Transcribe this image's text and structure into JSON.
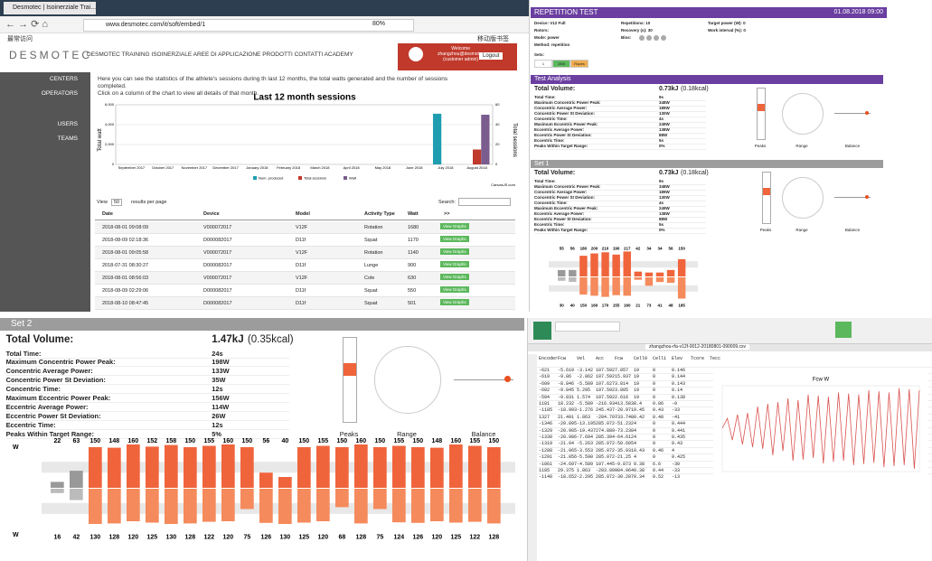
{
  "browser": {
    "tab": "Desmotec | Isoinerziale Trai...",
    "url": "www.desmotec.com/it/soft/embed/1",
    "zoom": "80%",
    "bookmarks": "最常访问",
    "mobile_bookmarks": "移动版书签",
    "logo": "DESMOTEC",
    "nav": "DESMOTEC TRAINING ISOINERZIALE  AREE DI APPLICAZIONE  PRODOTTI  CONTATTI  ACADEMY",
    "welcome": [
      "Welcome",
      "zhangzhou@desmotec",
      "(customer admin)"
    ],
    "logout": "Logout",
    "sidebar": [
      "CENTERS",
      "OPERATORS",
      "USERS",
      "TEAMS"
    ],
    "intro": [
      "Here you can see the statistics of the athlete's sessions during th last 12 months, the total watts generated and the number of sessions completed.",
      "Click on a column of the chart to view all details of that month."
    ],
    "table": {
      "show": "View",
      "per_page": "50",
      "results": "results per page",
      "search": "Search:",
      "headers": [
        "Date",
        "Device",
        "Model",
        "Activity Type",
        "Watt",
        ">>"
      ],
      "button": "View Graphs",
      "rows": [
        [
          "2018-08-01 09:08:09",
          "V000072017",
          "V12F",
          "Rotation",
          "1680"
        ],
        [
          "2018-08-09 02:18:36",
          "D000082017",
          "D11f",
          "Squat",
          "1170"
        ],
        [
          "2018-08-01 09:05:58",
          "V000072017",
          "V12F",
          "Rotation",
          "1140"
        ],
        [
          "2018-07-31 08:30:27",
          "D000082017",
          "D11f",
          "Lunge",
          "900"
        ],
        [
          "2018-08-01 08:56:03",
          "V000072017",
          "V12F",
          "Cole",
          "630"
        ],
        [
          "2018-08-09 02:29:06",
          "D000082017",
          "D11f",
          "Squat",
          "550"
        ],
        [
          "2018-08-10 08:47:45",
          "D000082017",
          "D11f",
          "Squat",
          "501"
        ]
      ]
    }
  },
  "chart_data": {
    "type": "bar",
    "title": "Last 12 month sessions",
    "y_label": "Total watt",
    "y2_label": "Total sessions",
    "credit": "CanvasJS.com",
    "categories": [
      "September 2017",
      "October 2017",
      "November 2017",
      "December 2017",
      "January 2018",
      "February 2018",
      "March 2018",
      "April 2018",
      "May 2018",
      "June 2018",
      "July 2018",
      "August 2018"
    ],
    "series": [
      {
        "name": "Num. produced",
        "color": "#1f9db0",
        "values": [
          0,
          0,
          0,
          0,
          0,
          0,
          0,
          0,
          0,
          0,
          5100,
          0
        ]
      },
      {
        "name": "Total sessions",
        "color": "#c0392b",
        "axis": "y2",
        "values": [
          0,
          0,
          0,
          0,
          0,
          0,
          0,
          0,
          0,
          0,
          0,
          15
        ]
      },
      {
        "name": "Watt",
        "color": "#7b5c8e",
        "values": [
          0,
          0,
          0,
          0,
          0,
          0,
          0,
          0,
          0,
          0,
          0,
          5000
        ]
      }
    ],
    "ylim": [
      0,
      6000
    ],
    "yticks": [
      0,
      {
        "value": 2000,
        "label": "2,000"
      },
      {
        "value": 4000,
        "label": "4,000"
      },
      {
        "value": 6000,
        "label": "6,000"
      }
    ],
    "y2lim": [
      0,
      60
    ],
    "y2ticks": [
      0,
      20,
      40,
      60
    ],
    "grid": true
  },
  "report": {
    "title": "REPETITION TEST",
    "date": "01.08.2018 09:00",
    "fields": [
      "Device: V12 Full",
      "Repetitions: 10",
      "Target power (W): 0",
      "Rotors:",
      "Recovery (s): 30",
      "Work interval (%): 0",
      "Mode: power",
      "Bins:",
      "",
      "Method: repetition"
    ],
    "sets_label": "Sets:",
    "sets": [
      "1",
      "15W",
      "Ropes"
    ],
    "analysis_title": "Test Analysis",
    "volume_label": "Total Volume:",
    "volume": "0.73kJ",
    "volume_kcal": "(0.18kcal)",
    "metrics": [
      [
        "Total Time:",
        "9s"
      ],
      [
        "Maximum Concentric Power Peak:",
        "348W"
      ],
      [
        "Concentric Average Power:",
        "189W"
      ],
      [
        "Concentric Power St Deviation:",
        "130W"
      ],
      [
        "Concentric Time:",
        "4s"
      ],
      [
        "Maximum Eccentric Power Peak:",
        "249W"
      ],
      [
        "Eccentric Average Power:",
        "138W"
      ],
      [
        "Eccentric Power St Deviation:",
        "88W"
      ],
      [
        "Eccentric Time:",
        "5s"
      ],
      [
        "Peaks Within Target Range:",
        "0%"
      ]
    ],
    "set1_title": "Set 1",
    "gauges": [
      "Peaks",
      "Range",
      "Balance"
    ],
    "set1_concentric": [
      55,
      56,
      180,
      200,
      210,
      190,
      217,
      42,
      34,
      34,
      56,
      150
    ],
    "set1_eccentric": [
      30,
      40,
      150,
      160,
      170,
      155,
      160,
      21,
      73,
      41,
      48,
      185
    ]
  },
  "set2": {
    "title": "Set 2",
    "volume_label": "Total Volume:",
    "volume": "1.47kJ",
    "volume_kcal": "(0.35kcal)",
    "metrics": [
      [
        "Total Time:",
        "24s"
      ],
      [
        "Maximum Concentric Power Peak:",
        "198W"
      ],
      [
        "Concentric Average Power:",
        "133W"
      ],
      [
        "Concentric Power St Deviation:",
        "35W"
      ],
      [
        "Concentric Time:",
        "12s"
      ],
      [
        "Maximum Eccentric Power Peak:",
        "156W"
      ],
      [
        "Eccentric Average Power:",
        "114W"
      ],
      [
        "Eccentric Power St Deviation:",
        "26W"
      ],
      [
        "Eccentric Time:",
        "12s"
      ],
      [
        "Peaks Within Target Range:",
        "5%"
      ]
    ],
    "gauges": [
      "Peaks",
      "Range",
      "Balance"
    ],
    "unit": "W",
    "concentric": [
      22,
      63,
      150,
      148,
      160,
      152,
      158,
      150,
      155,
      160,
      150,
      56,
      40,
      150,
      155,
      150,
      160,
      150,
      155,
      150,
      148,
      160,
      155,
      150
    ],
    "eccentric": [
      16,
      42,
      130,
      128,
      120,
      125,
      130,
      128,
      122,
      120,
      75,
      126,
      130,
      125,
      120,
      68,
      128,
      75,
      124,
      126,
      120,
      125,
      122,
      128
    ]
  },
  "sheet": {
    "file": "zhangzhou-rfa-v12f-0012-20180801-090009.csv",
    "chart_title": "Fcw W",
    "headers": [
      "Encoder",
      "Fcw",
      "Vel",
      "Acc",
      "Fcw",
      "Cell0",
      "Cell1",
      "Elev",
      "Tcore",
      "Tecc"
    ],
    "rows": [
      [
        "-621",
        "-5.619",
        "-3.142",
        "107.592",
        "7.857",
        "19",
        "0",
        "0.146"
      ],
      [
        "-619",
        "-9.86",
        "-2.862",
        "107.592",
        "15.937",
        "19",
        "0",
        "0.144"
      ],
      [
        "-609",
        "-8.846",
        "-5.589",
        "107.627",
        "3.814",
        "19",
        "0",
        "0.143"
      ],
      [
        "-602",
        "-9.845",
        "5.295",
        "107.592",
        "3.805",
        "19",
        "0",
        "0.14"
      ],
      [
        "-594",
        "-9.831",
        "1.574",
        "107.592",
        "2.616",
        "19",
        "0",
        "0.138"
      ],
      [
        "1181",
        "18.232",
        "-5.589",
        "-216.934",
        "-13.583",
        "8.4",
        "0.86",
        "-0"
      ],
      [
        "-1185",
        "-18.993",
        "-1.276",
        "245.437",
        "-20.971",
        "0.45",
        "0.43",
        "-33"
      ],
      [
        "1327",
        "21.491",
        "1.863",
        "-284.707",
        "-33.748",
        "0.42",
        "0.48",
        "-41"
      ],
      [
        "-1346",
        "-20.895",
        "-13.195",
        "285.072",
        "-51.232",
        "4",
        "0",
        "0.444"
      ],
      [
        "-1329",
        "-20.905",
        "-19.437",
        "274.889",
        "-73.238",
        "4",
        "0",
        "0.441"
      ],
      [
        "-1330",
        "-20.986",
        "-7.694",
        "285.394",
        "-64.612",
        "4",
        "0",
        "0.435"
      ],
      [
        "-1319",
        "-21.04",
        "-5.263",
        "285.072",
        "-50.605",
        "4",
        "0",
        "0.43"
      ],
      [
        "-1288",
        "-21.065",
        "-3.553",
        "285.072",
        "-35.931",
        "0.43",
        "0.46",
        "4"
      ],
      [
        "-1291",
        "-21.056",
        "-5.590",
        "285.072",
        "-21.25",
        "4",
        "0",
        "0.425"
      ],
      [
        "-1061",
        "-24.697",
        "-4.589",
        "107.445",
        "-9.873",
        "0.38",
        "6.6",
        "-30"
      ],
      [
        "1185",
        "29.375",
        "1.863",
        "-283.009",
        "-84.964",
        "0.38",
        "0.44",
        "-33"
      ],
      [
        "-1140",
        "-18.652",
        "-2.295",
        "285.072",
        "-30.287",
        "0.34",
        "0.52",
        "-13"
      ]
    ],
    "series": [
      0,
      18,
      -22,
      25,
      -30,
      28,
      -35,
      40,
      -38,
      45,
      -50,
      48,
      -42,
      55,
      -60,
      52,
      -58,
      62,
      -55,
      60,
      -65,
      58,
      -62,
      66,
      -60,
      64,
      -68,
      62,
      -66,
      70,
      -64,
      68,
      -72,
      66,
      -70,
      74,
      -68,
      72,
      -75,
      70
    ]
  }
}
